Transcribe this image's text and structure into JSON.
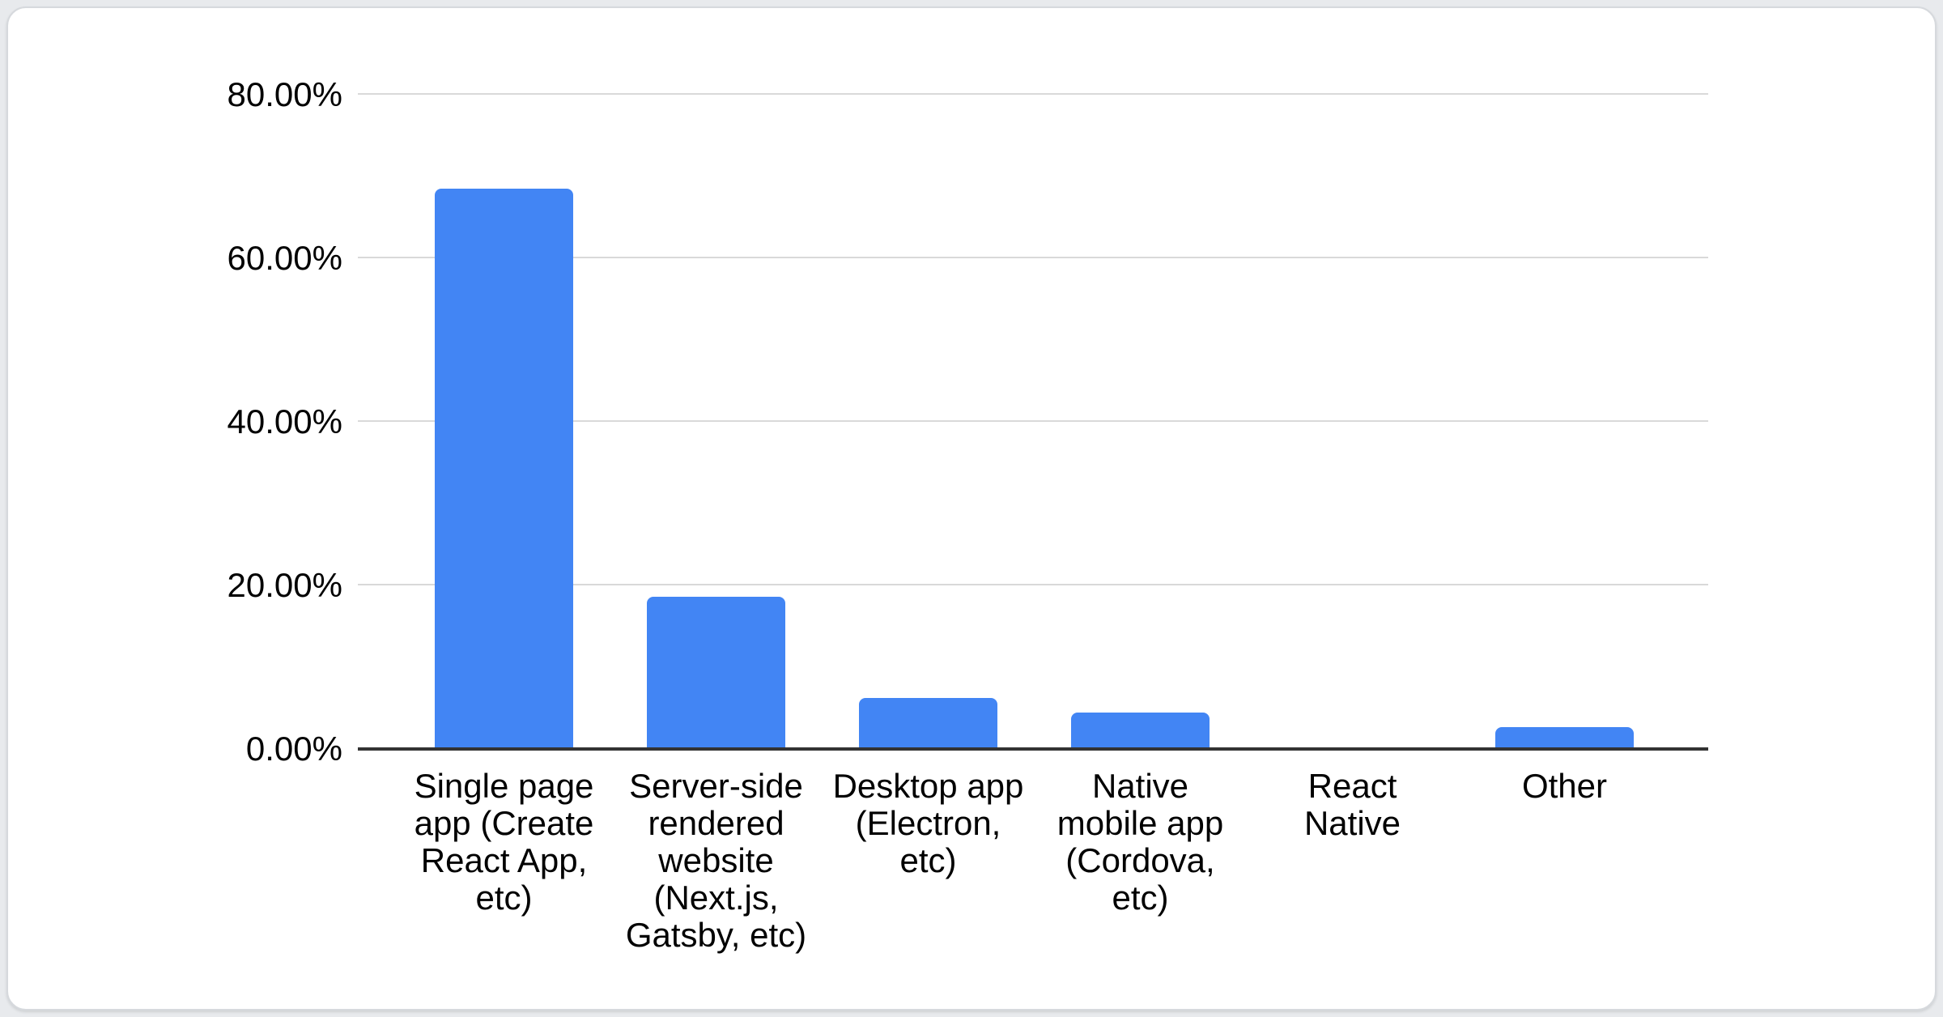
{
  "chart_data": {
    "type": "bar",
    "categories": [
      "Single page app (Create React App, etc)",
      "Server-side rendered website (Next.js, Gatsby, etc)",
      "Desktop app (Electron, etc)",
      "Native mobile app (Cordova, etc)",
      "React Native",
      "Other"
    ],
    "values": [
      68.3,
      18.4,
      6.0,
      4.3,
      0,
      2.5
    ],
    "unit": "percent",
    "title": "",
    "xlabel": "",
    "ylabel": "",
    "ylim": [
      0,
      80
    ],
    "y_ticks": [
      "0.00%",
      "20.00%",
      "40.00%",
      "60.00%",
      "80.00%"
    ],
    "grid": "horizontal",
    "legend": "none",
    "colors": {
      "bar": "#4285F4",
      "gridline": "#d9d9d9",
      "axis_line": "#333333",
      "label_text": "#000000",
      "card_background": "#ffffff",
      "card_border": "#d6d9dd",
      "page_background": "#e8eaed"
    }
  }
}
